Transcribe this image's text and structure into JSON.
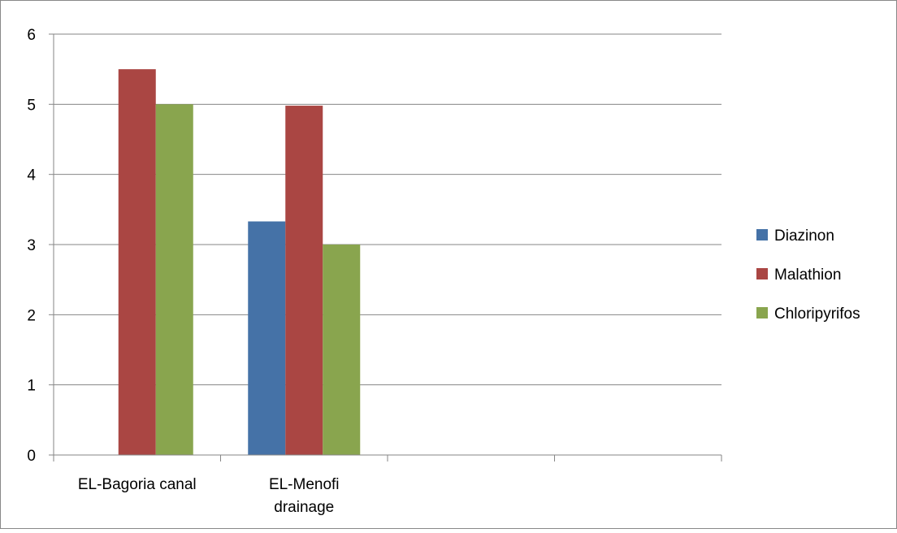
{
  "chart_data": {
    "type": "bar",
    "categories": [
      [
        "EL-Bagoria canal"
      ],
      [
        "EL-Menofi",
        "drainage"
      ],
      [
        ""
      ],
      [
        ""
      ]
    ],
    "series": [
      {
        "name": "Diazinon",
        "color": "#4572A7",
        "values": [
          0,
          3.33,
          0,
          0
        ]
      },
      {
        "name": "Malathion",
        "color": "#AA4643",
        "values": [
          5.5,
          4.98,
          0,
          0
        ]
      },
      {
        "name": "Chloripyrifos",
        "color": "#89A54E",
        "values": [
          5.0,
          3.0,
          0,
          0
        ]
      }
    ],
    "yticks": [
      "0",
      "1",
      "2",
      "3",
      "4",
      "5",
      "6"
    ],
    "ylim": [
      0,
      6
    ],
    "grid": true,
    "legend": "right"
  }
}
